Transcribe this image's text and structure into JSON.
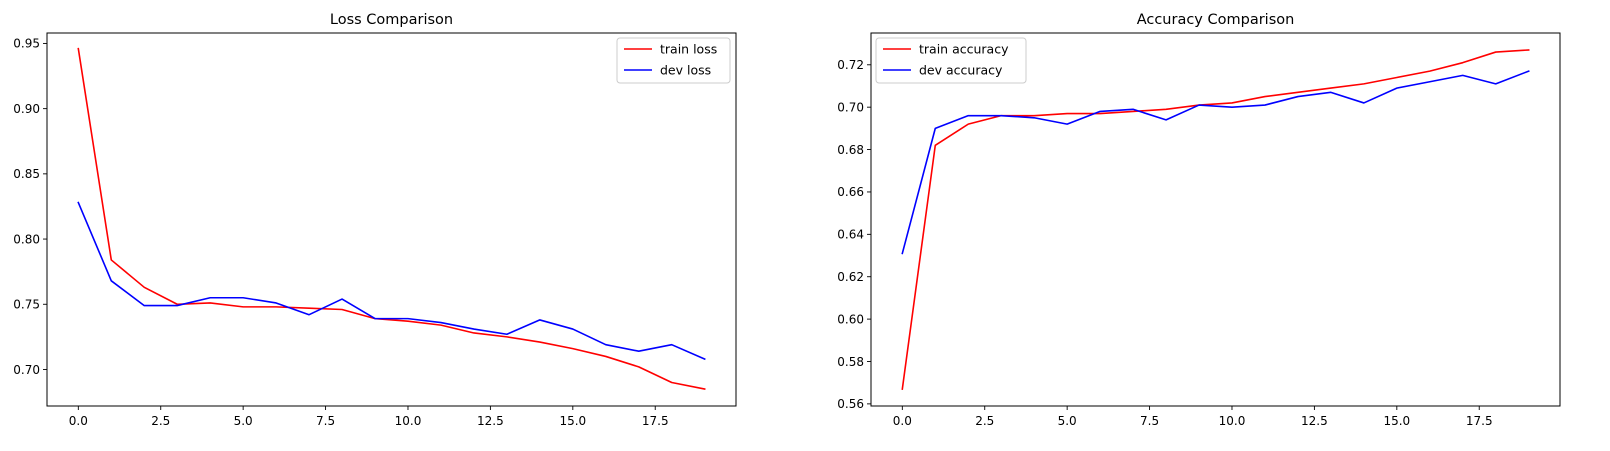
{
  "chart_data": [
    {
      "type": "line",
      "title": "Loss Comparison",
      "xlabel": "",
      "ylabel": "",
      "x": [
        0,
        1,
        2,
        3,
        4,
        5,
        6,
        7,
        8,
        9,
        10,
        11,
        12,
        13,
        14,
        15,
        16,
        17,
        18,
        19
      ],
      "xlim": [
        -0.95,
        19.95
      ],
      "ylim": [
        0.672,
        0.958
      ],
      "xticks": [
        0.0,
        2.5,
        5.0,
        7.5,
        10.0,
        12.5,
        15.0,
        17.5
      ],
      "xtick_labels": [
        "0.0",
        "2.5",
        "5.0",
        "7.5",
        "10.0",
        "12.5",
        "15.0",
        "17.5"
      ],
      "yticks": [
        0.7,
        0.75,
        0.8,
        0.85,
        0.9,
        0.95
      ],
      "ytick_labels": [
        "0.70",
        "0.75",
        "0.80",
        "0.85",
        "0.90",
        "0.95"
      ],
      "grid": false,
      "legend_position": "top-right",
      "series": [
        {
          "name": "train loss",
          "color": "#ff0000",
          "values": [
            0.946,
            0.784,
            0.763,
            0.75,
            0.751,
            0.748,
            0.748,
            0.747,
            0.746,
            0.739,
            0.737,
            0.734,
            0.728,
            0.725,
            0.721,
            0.716,
            0.71,
            0.702,
            0.69,
            0.685
          ]
        },
        {
          "name": "dev loss",
          "color": "#0000ff",
          "values": [
            0.828,
            0.768,
            0.749,
            0.749,
            0.755,
            0.755,
            0.751,
            0.742,
            0.754,
            0.739,
            0.739,
            0.736,
            0.731,
            0.727,
            0.738,
            0.731,
            0.719,
            0.714,
            0.719,
            0.708
          ]
        }
      ]
    },
    {
      "type": "line",
      "title": "Accuracy Comparison",
      "xlabel": "",
      "ylabel": "",
      "x": [
        0,
        1,
        2,
        3,
        4,
        5,
        6,
        7,
        8,
        9,
        10,
        11,
        12,
        13,
        14,
        15,
        16,
        17,
        18,
        19
      ],
      "xlim": [
        -0.95,
        19.95
      ],
      "ylim": [
        0.559,
        0.735
      ],
      "xticks": [
        0.0,
        2.5,
        5.0,
        7.5,
        10.0,
        12.5,
        15.0,
        17.5
      ],
      "xtick_labels": [
        "0.0",
        "2.5",
        "5.0",
        "7.5",
        "10.0",
        "12.5",
        "15.0",
        "17.5"
      ],
      "yticks": [
        0.56,
        0.58,
        0.6,
        0.62,
        0.64,
        0.66,
        0.68,
        0.7,
        0.72
      ],
      "ytick_labels": [
        "0.56",
        "0.58",
        "0.60",
        "0.62",
        "0.64",
        "0.66",
        "0.68",
        "0.70",
        "0.72"
      ],
      "grid": false,
      "legend_position": "top-left",
      "series": [
        {
          "name": "train accuracy",
          "color": "#ff0000",
          "values": [
            0.567,
            0.682,
            0.692,
            0.696,
            0.696,
            0.697,
            0.697,
            0.698,
            0.699,
            0.701,
            0.702,
            0.705,
            0.707,
            0.709,
            0.711,
            0.714,
            0.717,
            0.721,
            0.726,
            0.727
          ]
        },
        {
          "name": "dev accuracy",
          "color": "#0000ff",
          "values": [
            0.631,
            0.69,
            0.696,
            0.696,
            0.695,
            0.692,
            0.698,
            0.699,
            0.694,
            0.701,
            0.7,
            0.701,
            0.705,
            0.707,
            0.702,
            0.709,
            0.712,
            0.715,
            0.711,
            0.717
          ]
        }
      ]
    }
  ]
}
